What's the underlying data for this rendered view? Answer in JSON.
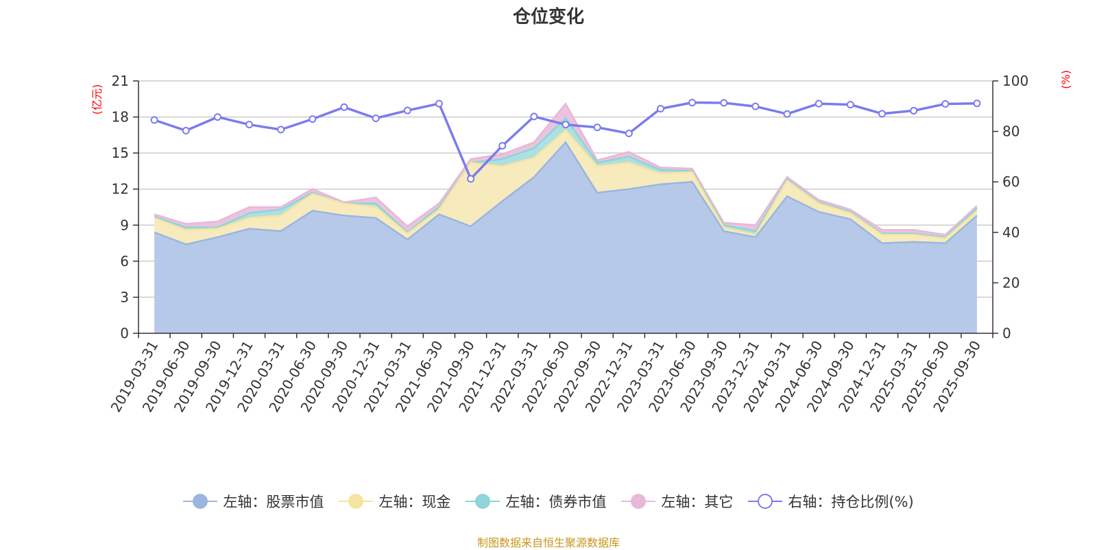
{
  "chart_data": {
    "type": "area",
    "title": "仓位变化",
    "source_note": "制图数据来自恒生聚源数据库",
    "left_axis": {
      "unit_label": "(亿元)",
      "min": 0,
      "max": 21,
      "ticks": [
        "0",
        "3",
        "6",
        "9",
        "12",
        "15",
        "18",
        "21"
      ]
    },
    "right_axis": {
      "unit_label": "(%)",
      "min": 0,
      "max": 100,
      "ticks": [
        "0",
        "20",
        "40",
        "60",
        "80",
        "100"
      ]
    },
    "categories": [
      "2019-03-31",
      "2019-06-30",
      "2019-09-30",
      "2019-12-31",
      "2020-03-31",
      "2020-06-30",
      "2020-09-30",
      "2020-12-31",
      "2021-03-31",
      "2021-06-30",
      "2021-09-30",
      "2021-12-31",
      "2022-03-31",
      "2022-06-30",
      "2022-09-30",
      "2022-12-31",
      "2023-03-31",
      "2023-06-30",
      "2023-09-30",
      "2023-12-31",
      "2024-03-31",
      "2024-06-30",
      "2024-09-30",
      "2024-12-31",
      "2025-03-31",
      "2025-06-30",
      "2025-09-30"
    ],
    "stacked_series": [
      {
        "name": "左轴：股票市值",
        "color": "#9ab5e0",
        "fill": "#b7c9e8",
        "values": [
          8.4,
          7.4,
          8.0,
          8.7,
          8.5,
          10.2,
          9.8,
          9.6,
          7.8,
          9.9,
          8.9,
          11.0,
          13.0,
          15.9,
          11.7,
          12.0,
          12.4,
          12.6,
          8.5,
          8.0,
          11.4,
          10.1,
          9.5,
          7.5,
          7.6,
          7.5,
          9.8
        ]
      },
      {
        "name": "左轴：现金",
        "color": "#f5e4a0",
        "fill": "#f7ebbd",
        "values": [
          1.2,
          1.2,
          0.7,
          0.9,
          1.3,
          1.4,
          1.0,
          0.9,
          0.5,
          0.4,
          5.3,
          2.9,
          1.6,
          1.0,
          2.2,
          2.2,
          0.9,
          0.8,
          0.3,
          0.2,
          1.3,
          0.7,
          0.5,
          0.7,
          0.6,
          0.4,
          0.4
        ]
      },
      {
        "name": "左轴：债券市值",
        "color": "#8fd4d8",
        "fill": "#ace0e2",
        "values": [
          0.1,
          0.2,
          0.1,
          0.4,
          0.5,
          0.1,
          0.0,
          0.3,
          0.1,
          0.2,
          0.0,
          0.6,
          0.8,
          1.0,
          0.3,
          0.5,
          0.3,
          0.1,
          0.2,
          0.3,
          0.1,
          0.1,
          0.1,
          0.1,
          0.1,
          0.1,
          0.2
        ]
      },
      {
        "name": "左轴：其它",
        "color": "#e8b8d8",
        "fill": "#eac4de",
        "values": [
          0.2,
          0.3,
          0.5,
          0.5,
          0.2,
          0.3,
          0.1,
          0.5,
          0.5,
          0.3,
          0.3,
          0.4,
          0.5,
          1.2,
          0.2,
          0.4,
          0.2,
          0.2,
          0.2,
          0.5,
          0.2,
          0.2,
          0.2,
          0.3,
          0.3,
          0.2,
          0.2
        ]
      }
    ],
    "line_series": {
      "name": "右轴：持仓比例(%)",
      "color": "#7b7bee",
      "values": [
        84.5,
        80.3,
        85.7,
        82.7,
        80.7,
        84.9,
        89.6,
        85.2,
        88.3,
        91.0,
        61.2,
        74.3,
        85.9,
        82.7,
        81.6,
        79.2,
        89.0,
        91.4,
        91.3,
        89.9,
        86.9,
        91.0,
        90.6,
        87.0,
        88.2,
        90.9,
        91.1
      ]
    }
  }
}
